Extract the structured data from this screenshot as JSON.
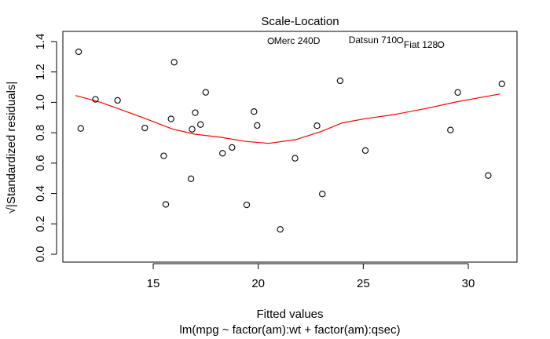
{
  "chart_data": {
    "type": "scatter",
    "title": "Scale-Location",
    "xlabel": "Fitted values",
    "subtitle": "lm(mpg ~ factor(am):wt + factor(am):qsec)",
    "ylabel": "√|Standardized residuals|",
    "xlim": [
      11.0,
      32.0
    ],
    "ylim": [
      -0.05,
      1.5
    ],
    "xticks": [
      15,
      20,
      25,
      30
    ],
    "yticks": [
      0.0,
      0.2,
      0.4,
      0.6,
      0.8,
      1.0,
      1.2,
      1.4
    ],
    "xtick_labels": [
      "15",
      "20",
      "25",
      "30"
    ],
    "ytick_labels": [
      "0.0",
      "0.2",
      "0.4",
      "0.6",
      "0.8",
      "1.0",
      "1.2",
      "1.4"
    ],
    "grid": false,
    "points": [
      {
        "x": 11.45,
        "y": 1.333
      },
      {
        "x": 11.55,
        "y": 0.828
      },
      {
        "x": 12.25,
        "y": 1.02
      },
      {
        "x": 13.3,
        "y": 1.013
      },
      {
        "x": 14.6,
        "y": 0.831
      },
      {
        "x": 15.5,
        "y": 0.648
      },
      {
        "x": 15.6,
        "y": 0.328
      },
      {
        "x": 15.85,
        "y": 0.891
      },
      {
        "x": 16.0,
        "y": 1.264
      },
      {
        "x": 16.8,
        "y": 0.497
      },
      {
        "x": 16.85,
        "y": 0.823
      },
      {
        "x": 17.0,
        "y": 0.932
      },
      {
        "x": 17.25,
        "y": 0.854
      },
      {
        "x": 17.5,
        "y": 1.066
      },
      {
        "x": 18.3,
        "y": 0.665
      },
      {
        "x": 18.75,
        "y": 0.703
      },
      {
        "x": 19.45,
        "y": 0.325
      },
      {
        "x": 19.8,
        "y": 0.939
      },
      {
        "x": 19.95,
        "y": 0.848
      },
      {
        "x": 20.6,
        "y": 1.404
      },
      {
        "x": 21.05,
        "y": 0.164
      },
      {
        "x": 21.75,
        "y": 0.632
      },
      {
        "x": 22.8,
        "y": 0.846
      },
      {
        "x": 23.05,
        "y": 0.397
      },
      {
        "x": 23.9,
        "y": 1.142
      },
      {
        "x": 25.1,
        "y": 0.683
      },
      {
        "x": 26.75,
        "y": 1.41
      },
      {
        "x": 28.7,
        "y": 1.38
      },
      {
        "x": 29.15,
        "y": 0.818
      },
      {
        "x": 29.5,
        "y": 1.065
      },
      {
        "x": 30.95,
        "y": 0.518
      },
      {
        "x": 31.6,
        "y": 1.122
      }
    ],
    "annotations": [
      {
        "text": "Merc 240D",
        "point_index": 19,
        "side": "right"
      },
      {
        "text": "Datsun 710",
        "point_index": 26,
        "side": "left"
      },
      {
        "text": "Fiat 128",
        "point_index": 27,
        "side": "left"
      }
    ],
    "smooth": {
      "color": "#ff0000",
      "x": [
        11.3,
        12.5,
        13.5,
        14.6,
        15.9,
        17.0,
        18.2,
        19.4,
        20.5,
        21.8,
        23.0,
        24.0,
        25.0,
        26.5,
        28.0,
        29.5,
        31.5
      ],
      "y": [
        1.045,
        1.0,
        0.95,
        0.895,
        0.825,
        0.79,
        0.77,
        0.743,
        0.73,
        0.755,
        0.808,
        0.865,
        0.89,
        0.92,
        0.96,
        1.005,
        1.055
      ]
    }
  }
}
